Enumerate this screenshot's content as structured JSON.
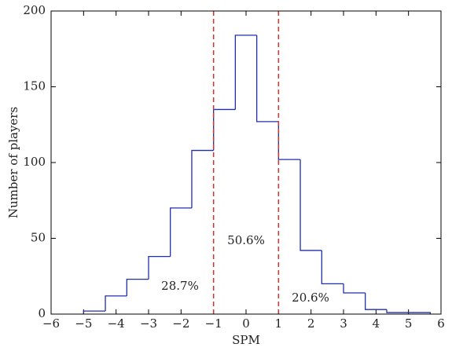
{
  "chart_data": {
    "type": "histogram",
    "xlabel": "SPM",
    "ylabel": "Number of players",
    "bins": [
      -5,
      -4.33,
      -3.67,
      -3,
      -2.33,
      -1.67,
      -1,
      -0.33,
      0.33,
      1,
      1.67,
      2.33,
      3,
      3.67,
      4.33,
      5,
      5.67
    ],
    "values": [
      2,
      12,
      23,
      38,
      70,
      108,
      135,
      184,
      127,
      102,
      42,
      20,
      14,
      3,
      1,
      1
    ],
    "color": "#1f2fa8",
    "vlines": [
      -1,
      1
    ],
    "vline_color": "#d0342c",
    "annotations": [
      "28.7%",
      "50.6%",
      "20.6%"
    ],
    "xlim": [
      -6,
      6
    ],
    "xticks": [
      {
        "value": -6,
        "label": "−6"
      },
      {
        "value": -5,
        "label": "−5"
      },
      {
        "value": -4,
        "label": "−4"
      },
      {
        "value": -3,
        "label": "−3"
      },
      {
        "value": -2,
        "label": "−2"
      },
      {
        "value": -1,
        "label": "−1"
      },
      0,
      1,
      2,
      3,
      4,
      5,
      6
    ],
    "ylim": [
      0,
      200
    ],
    "yticks": [
      0,
      50,
      100,
      150,
      200
    ]
  }
}
